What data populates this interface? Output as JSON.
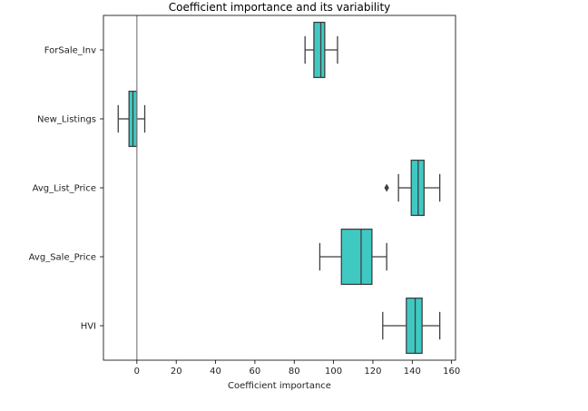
{
  "chart_data": {
    "type": "boxplot",
    "title": "Coefficient importance and its variability",
    "xlabel": "Coefficient importance",
    "ylabel": "",
    "xlim": [
      -17,
      162
    ],
    "xticks": [
      0,
      20,
      40,
      60,
      80,
      100,
      120,
      140,
      160
    ],
    "reference_line_x": 0,
    "box_color": "#40c9c3",
    "line_color": "#3f3f3f",
    "grid": false,
    "legend": "none",
    "categories": [
      "ForSale_Inv",
      "New_Listings",
      "Avg_List_Price",
      "Avg_Sale_Price",
      "HVI"
    ],
    "boxes": [
      {
        "category": "ForSale_Inv",
        "whisker_low": 85.5,
        "q1": 90,
        "median": 93.5,
        "q3": 95.5,
        "whisker_high": 102,
        "outliers": []
      },
      {
        "category": "New_Listings",
        "whisker_low": -9.5,
        "q1": -4,
        "median": -2,
        "q3": 0,
        "whisker_high": 4,
        "outliers": []
      },
      {
        "category": "Avg_List_Price",
        "whisker_low": 133,
        "q1": 139.5,
        "median": 143,
        "q3": 146,
        "whisker_high": 154,
        "outliers": [
          127
        ]
      },
      {
        "category": "Avg_Sale_Price",
        "whisker_low": 93,
        "q1": 104,
        "median": 114,
        "q3": 119.5,
        "whisker_high": 127,
        "outliers": []
      },
      {
        "category": "HVI",
        "whisker_low": 125,
        "q1": 137,
        "median": 141.5,
        "q3": 145,
        "whisker_high": 154,
        "outliers": []
      }
    ]
  }
}
